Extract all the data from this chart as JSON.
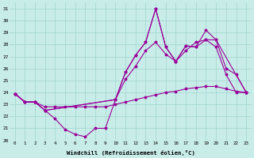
{
  "xlabel": "Windchill (Refroidissement éolien,°C)",
  "bg_color": "#c8ece8",
  "grid_color": "#a0d4d0",
  "line_color": "#990099",
  "xlim": [
    -0.5,
    23.5
  ],
  "ylim": [
    20,
    31.5
  ],
  "yticks": [
    20,
    21,
    22,
    23,
    24,
    25,
    26,
    27,
    28,
    29,
    30,
    31
  ],
  "xticks": [
    0,
    1,
    2,
    3,
    4,
    5,
    6,
    7,
    8,
    9,
    10,
    11,
    12,
    13,
    14,
    15,
    16,
    17,
    18,
    19,
    20,
    21,
    22,
    23
  ],
  "series": [
    {
      "x": [
        0,
        1,
        2,
        3,
        4,
        5,
        6,
        7,
        8,
        9,
        10,
        11,
        12,
        13,
        14,
        15,
        16,
        17,
        18,
        19,
        20,
        21,
        22,
        23
      ],
      "y": [
        23.9,
        23.2,
        23.2,
        22.5,
        21.8,
        20.9,
        20.5,
        20.3,
        21.0,
        21.0,
        23.4,
        25.7,
        27.1,
        28.2,
        31.0,
        27.8,
        26.6,
        27.9,
        27.8,
        28.4,
        27.8,
        25.5,
        24.0,
        24.0
      ]
    },
    {
      "x": [
        0,
        1,
        2,
        3,
        10,
        11,
        12,
        13,
        14,
        15,
        16,
        17,
        18,
        19,
        20,
        21,
        22,
        23
      ],
      "y": [
        23.9,
        23.2,
        23.2,
        22.5,
        23.4,
        25.7,
        27.1,
        28.2,
        31.0,
        27.8,
        26.6,
        27.9,
        27.8,
        29.2,
        28.4,
        26.0,
        25.5,
        24.0
      ]
    },
    {
      "x": [
        0,
        1,
        2,
        3,
        10,
        11,
        12,
        13,
        14,
        15,
        16,
        17,
        18,
        19,
        20,
        23
      ],
      "y": [
        23.9,
        23.2,
        23.2,
        22.5,
        23.4,
        25.1,
        26.2,
        27.5,
        28.2,
        27.2,
        26.6,
        27.5,
        28.2,
        28.4,
        28.4,
        24.0
      ]
    },
    {
      "x": [
        0,
        1,
        2,
        3,
        4,
        5,
        6,
        7,
        8,
        9,
        10,
        11,
        12,
        13,
        14,
        15,
        16,
        17,
        18,
        19,
        20,
        21,
        22,
        23
      ],
      "y": [
        23.9,
        23.2,
        23.2,
        22.8,
        22.8,
        22.8,
        22.8,
        22.8,
        22.8,
        22.8,
        23.0,
        23.2,
        23.4,
        23.6,
        23.8,
        24.0,
        24.1,
        24.3,
        24.4,
        24.5,
        24.5,
        24.3,
        24.1,
        24.0
      ]
    }
  ]
}
